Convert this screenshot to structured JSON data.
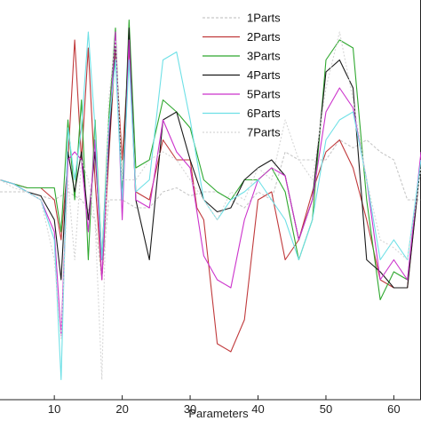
{
  "chart_data": {
    "type": "line",
    "xlabel": "Parameters",
    "ylabel": "",
    "title": "",
    "xlim": [
      2,
      64
    ],
    "ylim": [
      0,
      1
    ],
    "x_ticks": [
      10,
      20,
      30,
      40,
      50,
      60
    ],
    "grid": false,
    "legend": "top-right",
    "series": [
      {
        "name": "1Parts",
        "color": "#c8c8c8",
        "dash": "3,2",
        "values": [
          [
            2,
            0.52
          ],
          [
            4,
            0.52
          ],
          [
            6,
            0.52
          ],
          [
            8,
            0.51
          ],
          [
            10,
            0.5
          ],
          [
            12,
            0.52
          ],
          [
            14,
            0.5
          ],
          [
            16,
            0.45
          ],
          [
            17,
            0.3
          ],
          [
            18,
            0.5
          ],
          [
            20,
            0.5
          ],
          [
            22,
            0.48
          ],
          [
            24,
            0.48
          ],
          [
            26,
            0.52
          ],
          [
            28,
            0.53
          ],
          [
            30,
            0.51
          ],
          [
            32,
            0.52
          ],
          [
            34,
            0.52
          ],
          [
            36,
            0.5
          ],
          [
            38,
            0.48
          ],
          [
            40,
            0.52
          ],
          [
            42,
            0.5
          ],
          [
            44,
            0.62
          ],
          [
            46,
            0.6
          ],
          [
            48,
            0.6
          ],
          [
            50,
            0.6
          ],
          [
            52,
            0.65
          ],
          [
            54,
            0.63
          ],
          [
            56,
            0.65
          ],
          [
            58,
            0.62
          ],
          [
            60,
            0.6
          ],
          [
            62,
            0.5
          ],
          [
            64,
            0.5
          ]
        ]
      },
      {
        "name": "2Parts",
        "color": "#c0393b",
        "dash": "",
        "values": [
          [
            2,
            0.55
          ],
          [
            4,
            0.54
          ],
          [
            6,
            0.53
          ],
          [
            8,
            0.53
          ],
          [
            10,
            0.5
          ],
          [
            11,
            0.4
          ],
          [
            12,
            0.6
          ],
          [
            13,
            0.9
          ],
          [
            14,
            0.6
          ],
          [
            15,
            0.88
          ],
          [
            16,
            0.55
          ],
          [
            17,
            0.3
          ],
          [
            18,
            0.6
          ],
          [
            19,
            0.88
          ],
          [
            20,
            0.6
          ],
          [
            21,
            0.88
          ],
          [
            22,
            0.52
          ],
          [
            24,
            0.5
          ],
          [
            26,
            0.65
          ],
          [
            28,
            0.6
          ],
          [
            30,
            0.6
          ],
          [
            31,
            0.48
          ],
          [
            32,
            0.45
          ],
          [
            34,
            0.14
          ],
          [
            36,
            0.12
          ],
          [
            38,
            0.2
          ],
          [
            40,
            0.5
          ],
          [
            42,
            0.52
          ],
          [
            44,
            0.35
          ],
          [
            46,
            0.4
          ],
          [
            48,
            0.52
          ],
          [
            50,
            0.62
          ],
          [
            52,
            0.65
          ],
          [
            54,
            0.58
          ],
          [
            56,
            0.45
          ],
          [
            58,
            0.3
          ],
          [
            60,
            0.28
          ],
          [
            62,
            0.28
          ],
          [
            64,
            0.6
          ]
        ]
      },
      {
        "name": "3Parts",
        "color": "#2fa82f",
        "dash": "",
        "values": [
          [
            2,
            0.55
          ],
          [
            4,
            0.54
          ],
          [
            6,
            0.53
          ],
          [
            8,
            0.53
          ],
          [
            10,
            0.53
          ],
          [
            11,
            0.42
          ],
          [
            12,
            0.7
          ],
          [
            13,
            0.5
          ],
          [
            14,
            0.75
          ],
          [
            15,
            0.35
          ],
          [
            16,
            0.7
          ],
          [
            17,
            0.35
          ],
          [
            18,
            0.7
          ],
          [
            19,
            0.93
          ],
          [
            20,
            0.5
          ],
          [
            21,
            0.95
          ],
          [
            22,
            0.58
          ],
          [
            24,
            0.6
          ],
          [
            26,
            0.75
          ],
          [
            28,
            0.72
          ],
          [
            30,
            0.68
          ],
          [
            32,
            0.55
          ],
          [
            34,
            0.52
          ],
          [
            36,
            0.5
          ],
          [
            38,
            0.55
          ],
          [
            40,
            0.55
          ],
          [
            42,
            0.58
          ],
          [
            44,
            0.52
          ],
          [
            46,
            0.35
          ],
          [
            48,
            0.45
          ],
          [
            50,
            0.85
          ],
          [
            52,
            0.9
          ],
          [
            54,
            0.88
          ],
          [
            56,
            0.5
          ],
          [
            58,
            0.25
          ],
          [
            60,
            0.32
          ],
          [
            62,
            0.3
          ],
          [
            64,
            0.6
          ]
        ]
      },
      {
        "name": "4Parts",
        "color": "#1a1a1a",
        "dash": "",
        "values": [
          [
            2,
            0.55
          ],
          [
            4,
            0.54
          ],
          [
            6,
            0.52
          ],
          [
            8,
            0.51
          ],
          [
            10,
            0.45
          ],
          [
            11,
            0.3
          ],
          [
            12,
            0.62
          ],
          [
            13,
            0.52
          ],
          [
            14,
            0.62
          ],
          [
            15,
            0.45
          ],
          [
            16,
            0.62
          ],
          [
            17,
            0.35
          ],
          [
            18,
            0.62
          ],
          [
            19,
            0.9
          ],
          [
            20,
            0.5
          ],
          [
            21,
            0.93
          ],
          [
            22,
            0.5
          ],
          [
            24,
            0.35
          ],
          [
            26,
            0.7
          ],
          [
            28,
            0.72
          ],
          [
            30,
            0.6
          ],
          [
            32,
            0.5
          ],
          [
            34,
            0.47
          ],
          [
            36,
            0.48
          ],
          [
            38,
            0.55
          ],
          [
            40,
            0.58
          ],
          [
            42,
            0.6
          ],
          [
            44,
            0.56
          ],
          [
            46,
            0.4
          ],
          [
            48,
            0.5
          ],
          [
            50,
            0.82
          ],
          [
            52,
            0.85
          ],
          [
            54,
            0.78
          ],
          [
            56,
            0.35
          ],
          [
            58,
            0.32
          ],
          [
            60,
            0.28
          ],
          [
            62,
            0.28
          ],
          [
            64,
            0.6
          ]
        ]
      },
      {
        "name": "5Parts",
        "color": "#cc33cc",
        "dash": "",
        "values": [
          [
            2,
            0.55
          ],
          [
            4,
            0.54
          ],
          [
            6,
            0.52
          ],
          [
            8,
            0.5
          ],
          [
            10,
            0.42
          ],
          [
            11,
            0.16
          ],
          [
            12,
            0.6
          ],
          [
            13,
            0.62
          ],
          [
            14,
            0.6
          ],
          [
            15,
            0.42
          ],
          [
            16,
            0.65
          ],
          [
            17,
            0.3
          ],
          [
            18,
            0.65
          ],
          [
            19,
            0.92
          ],
          [
            20,
            0.45
          ],
          [
            21,
            0.9
          ],
          [
            22,
            0.5
          ],
          [
            24,
            0.48
          ],
          [
            26,
            0.7
          ],
          [
            28,
            0.62
          ],
          [
            30,
            0.58
          ],
          [
            32,
            0.36
          ],
          [
            34,
            0.3
          ],
          [
            36,
            0.28
          ],
          [
            38,
            0.45
          ],
          [
            40,
            0.55
          ],
          [
            42,
            0.58
          ],
          [
            44,
            0.56
          ],
          [
            46,
            0.4
          ],
          [
            48,
            0.5
          ],
          [
            50,
            0.72
          ],
          [
            52,
            0.78
          ],
          [
            54,
            0.73
          ],
          [
            56,
            0.55
          ],
          [
            58,
            0.3
          ],
          [
            60,
            0.35
          ],
          [
            62,
            0.3
          ],
          [
            64,
            0.62
          ]
        ]
      },
      {
        "name": "6Parts",
        "color": "#6ee0e6",
        "dash": "",
        "values": [
          [
            2,
            0.55
          ],
          [
            4,
            0.54
          ],
          [
            6,
            0.52
          ],
          [
            8,
            0.5
          ],
          [
            10,
            0.4
          ],
          [
            11,
            0.05
          ],
          [
            12,
            0.68
          ],
          [
            13,
            0.55
          ],
          [
            14,
            0.68
          ],
          [
            15,
            0.92
          ],
          [
            16,
            0.68
          ],
          [
            17,
            0.35
          ],
          [
            18,
            0.68
          ],
          [
            19,
            0.85
          ],
          [
            20,
            0.5
          ],
          [
            21,
            0.85
          ],
          [
            22,
            0.52
          ],
          [
            24,
            0.55
          ],
          [
            26,
            0.85
          ],
          [
            28,
            0.87
          ],
          [
            30,
            0.7
          ],
          [
            32,
            0.5
          ],
          [
            34,
            0.45
          ],
          [
            36,
            0.5
          ],
          [
            38,
            0.52
          ],
          [
            40,
            0.55
          ],
          [
            42,
            0.5
          ],
          [
            44,
            0.45
          ],
          [
            46,
            0.35
          ],
          [
            48,
            0.45
          ],
          [
            50,
            0.65
          ],
          [
            52,
            0.7
          ],
          [
            54,
            0.72
          ],
          [
            56,
            0.55
          ],
          [
            58,
            0.35
          ],
          [
            60,
            0.4
          ],
          [
            62,
            0.35
          ],
          [
            64,
            0.6
          ]
        ]
      },
      {
        "name": "7Parts",
        "color": "#d6d6d6",
        "dash": "2,2",
        "values": [
          [
            2,
            0.55
          ],
          [
            4,
            0.53
          ],
          [
            6,
            0.52
          ],
          [
            8,
            0.5
          ],
          [
            10,
            0.35
          ],
          [
            11,
            0.15
          ],
          [
            12,
            0.55
          ],
          [
            13,
            0.35
          ],
          [
            14,
            0.6
          ],
          [
            15,
            0.55
          ],
          [
            16,
            0.45
          ],
          [
            17,
            0.05
          ],
          [
            18,
            0.75
          ],
          [
            19,
            0.9
          ],
          [
            20,
            0.55
          ],
          [
            22,
            0.55
          ],
          [
            24,
            0.6
          ],
          [
            26,
            0.62
          ],
          [
            28,
            0.6
          ],
          [
            30,
            0.55
          ],
          [
            32,
            0.5
          ],
          [
            34,
            0.45
          ],
          [
            36,
            0.52
          ],
          [
            38,
            0.5
          ],
          [
            40,
            0.58
          ],
          [
            42,
            0.55
          ],
          [
            44,
            0.7
          ],
          [
            46,
            0.6
          ],
          [
            48,
            0.55
          ],
          [
            50,
            0.78
          ],
          [
            52,
            0.92
          ],
          [
            54,
            0.75
          ],
          [
            56,
            0.55
          ],
          [
            58,
            0.4
          ],
          [
            60,
            0.38
          ],
          [
            62,
            0.35
          ],
          [
            64,
            0.58
          ]
        ]
      }
    ]
  }
}
